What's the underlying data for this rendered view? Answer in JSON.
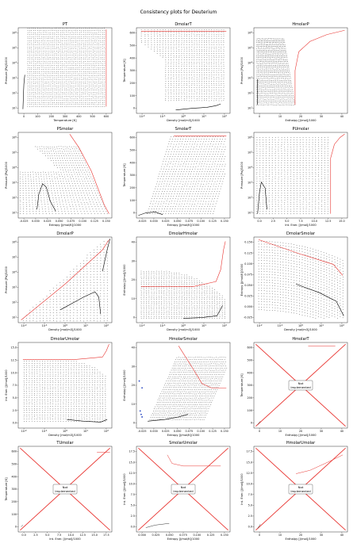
{
  "figure": {
    "title": "Consistency plots for Deuterium"
  },
  "colors": {
    "grid_points": "#333333",
    "highlight": "#e8332f",
    "dot_color": "#000000",
    "marker_blue": "#1f3fbf"
  },
  "not_implemented_label": [
    "Not",
    "Implemented"
  ],
  "chart_data": [
    {
      "title": "PT",
      "type": "scatter",
      "xlabel": "Temperature [K]",
      "ylabel": "Pressure [Pa]/1000",
      "xticks": [
        "0",
        "100",
        "200",
        "300",
        "400",
        "500",
        "600"
      ],
      "yticks": [
        "10^1",
        "10^2",
        "10^3",
        "10^4",
        "10^5",
        "10^6"
      ],
      "xscale": "linear",
      "yscale": "log",
      "shape": "pt",
      "not_implemented": false
    },
    {
      "title": "DmolarT",
      "type": "scatter",
      "xlabel": "Density [mol/m3]/1000",
      "ylabel": "Temperature [K]",
      "xticks": [
        "10^-2",
        "10^-1",
        "10^0",
        "10^1",
        "10^2"
      ],
      "yticks": [
        "0",
        "100",
        "200",
        "300",
        "400",
        "500",
        "600"
      ],
      "xscale": "log",
      "yscale": "linear",
      "shape": "dmolart",
      "not_implemented": false
    },
    {
      "title": "HmolarP",
      "type": "scatter",
      "xlabel": "Enthalpy [J/mol]/1000",
      "ylabel": "Pressure [Pa]/1000",
      "xticks": [
        "0",
        "10",
        "20",
        "30",
        "40"
      ],
      "yticks": [
        "10^1",
        "10^2",
        "10^3",
        "10^4",
        "10^5",
        "10^6"
      ],
      "xscale": "linear",
      "yscale": "log",
      "shape": "hmolarp",
      "not_implemented": false
    },
    {
      "title": "PSmolar",
      "type": "scatter",
      "xlabel": "Entropy [J/mol/K]/1000",
      "ylabel": "Pressure [Pa]/1000",
      "xticks": [
        "-0.025",
        "0.000",
        "0.025",
        "0.050",
        "0.075",
        "0.100",
        "0.125",
        "0.150"
      ],
      "yticks": [
        "10^1",
        "10^2",
        "10^3",
        "10^4",
        "10^5",
        "10^6"
      ],
      "xscale": "linear",
      "yscale": "log",
      "shape": "psmolar",
      "not_implemented": false
    },
    {
      "title": "SmolarT",
      "type": "scatter",
      "xlabel": "Entropy [J/mol/K]/1000",
      "ylabel": "Temperature [K]",
      "xticks": [
        "-0.025",
        "0.000",
        "0.025",
        "0.050",
        "0.075",
        "0.100",
        "0.125",
        "0.150"
      ],
      "yticks": [
        "0",
        "100",
        "200",
        "300",
        "400",
        "500",
        "600"
      ],
      "xscale": "linear",
      "yscale": "linear",
      "shape": "smolart",
      "not_implemented": false
    },
    {
      "title": "PUmolar",
      "type": "scatter",
      "xlabel": "Int. Ener. [J/mol]/1000",
      "ylabel": "Pressure [Pa]/1000",
      "xticks": [
        "0.0",
        "2.5",
        "5.0",
        "7.5",
        "10.0",
        "12.5",
        "15.0"
      ],
      "yticks": [
        "10^1",
        "10^2",
        "10^3",
        "10^4",
        "10^5",
        "10^6"
      ],
      "xscale": "linear",
      "yscale": "log",
      "shape": "pumolar",
      "not_implemented": false
    },
    {
      "title": "DmolarP",
      "type": "scatter",
      "xlabel": "Density [mol/m3]/1000",
      "ylabel": "Pressure [Pa]/1000",
      "xticks": [
        "10^-2",
        "10^-1",
        "10^0",
        "10^1",
        "10^2"
      ],
      "yticks": [
        "10^1",
        "10^2",
        "10^3",
        "10^4",
        "10^5",
        "10^6"
      ],
      "xscale": "log",
      "yscale": "log",
      "shape": "dmolarp",
      "not_implemented": false
    },
    {
      "title": "DmolarHmolar",
      "type": "scatter",
      "xlabel": "Density [mol/m3]/1000",
      "ylabel": "Enthalpy [J/mol]/1000",
      "xticks": [
        "10^-2",
        "10^-1",
        "10^0",
        "10^1",
        "10^2"
      ],
      "yticks": [
        "0",
        "10",
        "20",
        "30",
        "40"
      ],
      "xscale": "log",
      "yscale": "linear",
      "shape": "dmolarhmolar",
      "not_implemented": false
    },
    {
      "title": "DmolarSmolar",
      "type": "scatter",
      "xlabel": "Density [mol/m3]/1000",
      "ylabel": "Entropy [J/mol/K]/1000",
      "xticks": [
        "10^-2",
        "10^-1",
        "10^0",
        "10^1",
        "10^2"
      ],
      "yticks": [
        "-0.025",
        "0.000",
        "0.025",
        "0.050",
        "0.075",
        "0.100",
        "0.125",
        "0.150"
      ],
      "xscale": "log",
      "yscale": "linear",
      "shape": "dmolarsmolar",
      "not_implemented": false
    },
    {
      "title": "DmolarUmolar",
      "type": "scatter",
      "xlabel": "Density [mol/m3]/1000",
      "ylabel": "Int. Ener. [J/mol]/1000",
      "xticks": [
        "10^-2",
        "10^-1",
        "10^0",
        "10^1",
        "10^2"
      ],
      "yticks": [
        "0.0",
        "2.5",
        "5.0",
        "7.5",
        "10.0",
        "12.5",
        "15.0"
      ],
      "xscale": "log",
      "yscale": "linear",
      "shape": "dmolarumolar",
      "not_implemented": false
    },
    {
      "title": "HmolarSmolar",
      "type": "scatter",
      "xlabel": "Entropy [J/mol/K]/1000",
      "ylabel": "Enthalpy [J/mol]/1000",
      "xticks": [
        "-0.025",
        "0.000",
        "0.025",
        "0.050",
        "0.075",
        "0.100",
        "0.125",
        "0.150"
      ],
      "yticks": [
        "0",
        "10",
        "20",
        "30",
        "40"
      ],
      "xscale": "linear",
      "yscale": "linear",
      "shape": "hmolarsmolar",
      "not_implemented": false
    },
    {
      "title": "HmolarT",
      "type": "scatter",
      "xlabel": "Enthalpy [J/mol]/1000",
      "ylabel": "Temperature [K]",
      "xticks": [
        "0",
        "10",
        "20",
        "30",
        "40"
      ],
      "yticks": [
        "0",
        "100",
        "200",
        "300",
        "400",
        "500",
        "600"
      ],
      "xscale": "linear",
      "yscale": "linear",
      "shape": "ni_hmolart",
      "not_implemented": true
    },
    {
      "title": "TUmolar",
      "type": "scatter",
      "xlabel": "Int. Ener. [J/mol]/1000",
      "ylabel": "Temperature [K]",
      "xticks": [
        "0.0",
        "2.5",
        "5.0",
        "7.5",
        "10.0",
        "12.5",
        "15.0",
        "17.5"
      ],
      "yticks": [
        "0",
        "100",
        "200",
        "300",
        "400",
        "500",
        "600"
      ],
      "xscale": "linear",
      "yscale": "linear",
      "shape": "ni_tumolar",
      "not_implemented": true
    },
    {
      "title": "SmolarUmolar",
      "type": "scatter",
      "xlabel": "Entropy [J/mol/K]/1000",
      "ylabel": "Int. Ener. [J/mol]/1000",
      "xticks": [
        "0.000",
        "0.025",
        "0.050",
        "0.075",
        "0.100",
        "0.125",
        "0.150"
      ],
      "yticks": [
        "0.0",
        "2.5",
        "5.0",
        "7.5",
        "10.0",
        "12.5",
        "15.0",
        "17.5"
      ],
      "xscale": "linear",
      "yscale": "linear",
      "shape": "ni_smolarumolar",
      "not_implemented": true
    },
    {
      "title": "HmolarUmolar",
      "type": "scatter",
      "xlabel": "Enthalpy [J/mol]/1000",
      "ylabel": "Int. Ener. [J/mol]/1000",
      "xticks": [
        "0",
        "10",
        "20",
        "30",
        "40"
      ],
      "yticks": [
        "0.0",
        "2.5",
        "5.0",
        "7.5",
        "10.0",
        "12.5",
        "15.0",
        "17.5"
      ],
      "xscale": "linear",
      "yscale": "linear",
      "shape": "ni_hmolarumolar",
      "not_implemented": true
    }
  ]
}
